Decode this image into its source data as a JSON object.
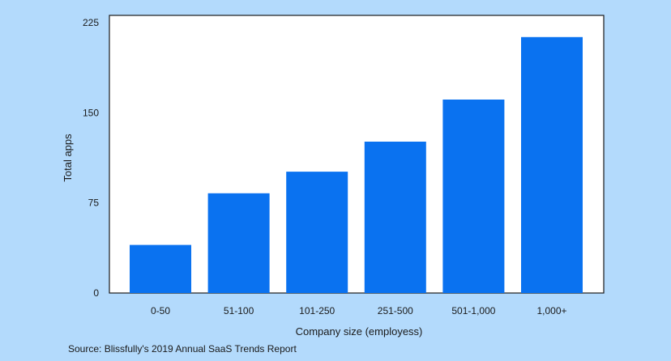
{
  "colors": {
    "background": "#b3dafc",
    "plot_background": "#ffffff",
    "bar": "#0a72f0",
    "axis": "#1a1a1a"
  },
  "source": "Source: Blissfully's 2019 Annual SaaS Trends Report",
  "chart_data": {
    "type": "bar",
    "title": "",
    "xlabel": "Company size (employess)",
    "ylabel": "Total apps",
    "categories": [
      "0-50",
      "51-100",
      "101-250",
      "251-500",
      "501-1,000",
      "1,000+"
    ],
    "values": [
      40,
      83,
      101,
      126,
      161,
      213
    ],
    "ylim": [
      0,
      225
    ],
    "yticks": [
      0,
      75,
      150,
      225
    ],
    "ytick_labels": [
      "0",
      "75",
      "150",
      "225"
    ],
    "grid": false,
    "legend": "none"
  }
}
